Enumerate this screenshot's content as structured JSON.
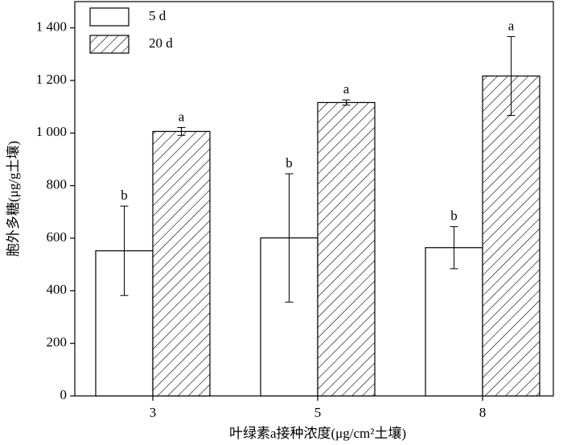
{
  "chart_data": {
    "type": "bar",
    "xlabel": "叶绿素a接种浓度(μg/cm²土壤)",
    "ylabel": "胞外多糖(μg/g土壤)",
    "categories": [
      "3",
      "5",
      "8"
    ],
    "series": [
      {
        "name": "5 d",
        "color": "#ffffff",
        "pattern": "none",
        "values": [
          552,
          601,
          564
        ],
        "errors": [
          170,
          244,
          80
        ],
        "letters": [
          "b",
          "b",
          "b"
        ]
      },
      {
        "name": "20 d",
        "color": "#ffffff",
        "pattern": "hatch",
        "values": [
          1006,
          1116,
          1217
        ],
        "errors": [
          15,
          10,
          150
        ],
        "letters": [
          "a",
          "a",
          "a"
        ]
      }
    ],
    "ylim": [
      0,
      1500
    ],
    "yticks": [
      0,
      200,
      400,
      600,
      800,
      {
        "value": 1000,
        "label": "1 000"
      },
      {
        "value": 1200,
        "label": "1 200"
      },
      {
        "value": 1400,
        "label": "1 400"
      }
    ],
    "legend": "upper left"
  }
}
